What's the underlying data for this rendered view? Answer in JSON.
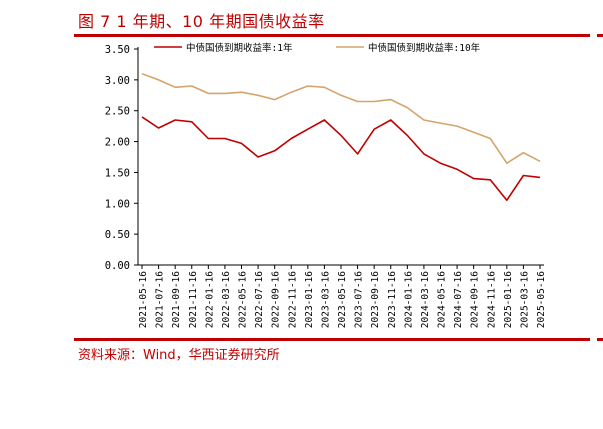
{
  "header": {
    "title": "图 7 1 年期、10 年期国债收益率"
  },
  "footer": {
    "source": "资料来源：Wind，华西证券研究所"
  },
  "colors": {
    "accent": "#c00000",
    "series_1y": "#c00000",
    "series_10y": "#d4a46a",
    "axis": "#000000"
  },
  "chart_data": {
    "type": "line",
    "title": "",
    "xlabel": "",
    "ylabel": "",
    "ylim": [
      0,
      3.5
    ],
    "yticks": [
      "3.50",
      "3.00",
      "2.50",
      "2.00",
      "1.50",
      "1.00",
      "0.50",
      "0.00"
    ],
    "ytick_values": [
      3.5,
      3.0,
      2.5,
      2.0,
      1.5,
      1.0,
      0.5,
      0.0
    ],
    "grid": false,
    "legend": "top",
    "x": [
      "2021-05-16",
      "2021-07-16",
      "2021-09-16",
      "2021-11-16",
      "2022-01-16",
      "2022-03-16",
      "2022-05-16",
      "2022-07-16",
      "2022-09-16",
      "2022-11-16",
      "2023-01-16",
      "2023-03-16",
      "2023-05-16",
      "2023-07-16",
      "2023-09-16",
      "2023-11-16",
      "2024-01-16",
      "2024-03-16",
      "2024-05-16",
      "2024-07-16",
      "2024-09-16",
      "2024-11-16",
      "2025-01-16",
      "2025-03-16",
      "2025-05-16"
    ],
    "xticks": [
      "2021-05-16",
      "2021-07-16",
      "2021-09-16",
      "2021-11-16",
      "2022-01-16",
      "2022-03-16",
      "2022-05-16",
      "2022-07-16",
      "2022-09-16",
      "2022-11-16",
      "2023-01-16",
      "2023-03-16",
      "2023-05-16",
      "2023-07-16",
      "2023-09-16",
      "2023-11-16",
      "2024-01-16",
      "2024-03-16",
      "2024-05-16",
      "2024-07-16",
      "2024-09-16",
      "2024-11-16",
      "2025-01-16",
      "2025-03-16",
      "2025-05-16"
    ],
    "series": [
      {
        "name": "中债国债到期收益率:1年",
        "color": "#c00000",
        "values": [
          2.4,
          2.22,
          2.35,
          2.32,
          2.05,
          2.05,
          1.97,
          1.75,
          1.85,
          2.05,
          2.2,
          2.35,
          2.1,
          1.8,
          2.2,
          2.35,
          2.1,
          1.8,
          1.65,
          1.55,
          1.4,
          1.38,
          1.05,
          1.45,
          1.42
        ]
      },
      {
        "name": "中债国债到期收益率:10年",
        "color": "#d4a46a",
        "values": [
          3.1,
          3.0,
          2.88,
          2.9,
          2.78,
          2.78,
          2.8,
          2.75,
          2.68,
          2.8,
          2.9,
          2.88,
          2.75,
          2.65,
          2.65,
          2.68,
          2.55,
          2.35,
          2.3,
          2.25,
          2.15,
          2.05,
          1.65,
          1.82,
          1.68
        ]
      }
    ]
  }
}
